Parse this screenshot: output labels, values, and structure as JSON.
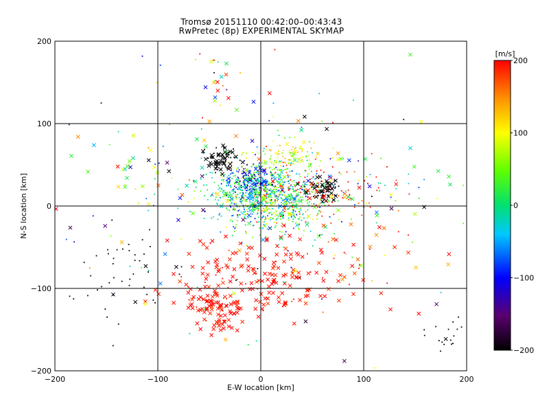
{
  "titles": {
    "line1": "Tromsø 20151110 00:42:00–00:43:43",
    "line2": "RwPretec (8p) EXPERIMENTAL SKYMAP"
  },
  "colorbar": {
    "unit_label": "[m/s]",
    "ticks": [
      200,
      100,
      0,
      -100,
      -200
    ],
    "range": [
      -200,
      200
    ]
  },
  "chart_data": {
    "type": "scatter",
    "xlabel": "E-W location [km]",
    "ylabel": "N-S location [km]",
    "xlim": [
      -200,
      200
    ],
    "ylim": [
      -200,
      200
    ],
    "xticks": [
      -200,
      -100,
      0,
      100,
      200
    ],
    "yticks": [
      -200,
      -100,
      0,
      100,
      200
    ],
    "grid": true,
    "color_scale": "velocity [m/s], -200 (black) to 200 (red)",
    "marker_types": [
      "x",
      "dot"
    ],
    "clusters": [
      {
        "cx": -5,
        "cy": 15,
        "sx": 25,
        "sy": 20,
        "n": 520,
        "vmean": 0,
        "vspread": 60,
        "xfrac": 0.12
      },
      {
        "cx": 20,
        "cy": 5,
        "sx": 25,
        "sy": 18,
        "n": 380,
        "vmean": 20,
        "vspread": 60,
        "xfrac": 0.08
      },
      {
        "cx": -8,
        "cy": 30,
        "sx": 12,
        "sy": 10,
        "n": 180,
        "vmean": -80,
        "vspread": 40,
        "xfrac": 0.08
      },
      {
        "cx": 25,
        "cy": 60,
        "sx": 18,
        "sy": 10,
        "n": 120,
        "vmean": 90,
        "vspread": 30,
        "xfrac": 0.05
      },
      {
        "cx": -38,
        "cy": 55,
        "sx": 8,
        "sy": 8,
        "n": 70,
        "vmean": -200,
        "vspread": 5,
        "xfrac": 0.6
      },
      {
        "cx": 60,
        "cy": 20,
        "sx": 10,
        "sy": 6,
        "n": 60,
        "vmean": -200,
        "vspread": 5,
        "xfrac": 0.5
      },
      {
        "cx": 0,
        "cy": -85,
        "sx": 40,
        "sy": 25,
        "n": 170,
        "vmean": 195,
        "vspread": 8,
        "xfrac": 0.85
      },
      {
        "cx": -45,
        "cy": -125,
        "sx": 14,
        "sy": 12,
        "n": 90,
        "vmean": 195,
        "vspread": 8,
        "xfrac": 0.9
      },
      {
        "cx": 50,
        "cy": 15,
        "sx": 30,
        "sy": 20,
        "n": 110,
        "vmean": 190,
        "vspread": 15,
        "xfrac": 0.1
      },
      {
        "cx": -135,
        "cy": -70,
        "sx": 25,
        "sy": 30,
        "n": 45,
        "vmean": -200,
        "vspread": 5,
        "xfrac": 0.1
      },
      {
        "cx": 180,
        "cy": -155,
        "sx": 12,
        "sy": 8,
        "n": 18,
        "vmean": -200,
        "vspread": 5,
        "xfrac": 0.1
      },
      {
        "cx": -40,
        "cy": 160,
        "sx": 12,
        "sy": 25,
        "n": 25,
        "vmean": 90,
        "vspread": 100,
        "xfrac": 0.6
      },
      {
        "cx": -110,
        "cy": 40,
        "sx": 40,
        "sy": 30,
        "n": 45,
        "vmean": 40,
        "vspread": 100,
        "xfrac": 0.6
      },
      {
        "cx": 110,
        "cy": 30,
        "sx": 50,
        "sy": 30,
        "n": 55,
        "vmean": 40,
        "vspread": 110,
        "xfrac": 0.35
      },
      {
        "cx": 90,
        "cy": -70,
        "sx": 35,
        "sy": 25,
        "n": 40,
        "vmean": 170,
        "vspread": 40,
        "xfrac": 0.6
      },
      {
        "cx": 0,
        "cy": 0,
        "sx": 110,
        "sy": 100,
        "n": 140,
        "vmean": 0,
        "vspread": 150,
        "xfrac": 0.4
      }
    ]
  }
}
